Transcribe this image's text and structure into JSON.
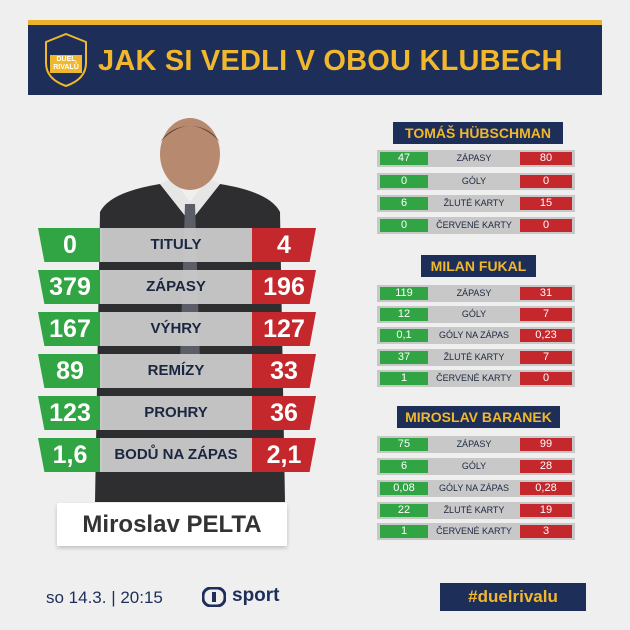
{
  "header": {
    "logo_lines": [
      "DUEL",
      "RIVALŮ"
    ],
    "title": "JAK SI VEDLI V OBOU KLUBECH"
  },
  "person": {
    "name": "Miroslav PELTA"
  },
  "stats": [
    {
      "left": "0",
      "label": "TITULY",
      "right": "4"
    },
    {
      "left": "379",
      "label": "ZÁPASY",
      "right": "196"
    },
    {
      "left": "167",
      "label": "VÝHRY",
      "right": "127"
    },
    {
      "left": "89",
      "label": "REMÍZY",
      "right": "33"
    },
    {
      "left": "123",
      "label": "PROHRY",
      "right": "36"
    },
    {
      "left": "1,6",
      "label": "BODŮ NA ZÁPAS",
      "right": "2,1"
    }
  ],
  "panels": [
    {
      "title": "TOMÁŠ HÜBSCHMAN",
      "rows": [
        {
          "left": "47",
          "label": "ZÁPASY",
          "right": "80"
        },
        {
          "left": "0",
          "label": "GÓLY",
          "right": "0"
        },
        {
          "left": "6",
          "label": "ŽLUTÉ KARTY",
          "right": "15"
        },
        {
          "left": "0",
          "label": "ČERVENÉ KARTY",
          "right": "0"
        }
      ]
    },
    {
      "title": "MILAN FUKAL",
      "rows": [
        {
          "left": "119",
          "label": "ZÁPASY",
          "right": "31"
        },
        {
          "left": "12",
          "label": "GÓLY",
          "right": "7"
        },
        {
          "left": "0,1",
          "label": "GÓLY NA ZÁPAS",
          "right": "0,23"
        },
        {
          "left": "37",
          "label": "ŽLUTÉ KARTY",
          "right": "7"
        },
        {
          "left": "1",
          "label": "ČERVENÉ KARTY",
          "right": "0"
        }
      ]
    },
    {
      "title": "MIROSLAV BARANEK",
      "rows": [
        {
          "left": "75",
          "label": "ZÁPASY",
          "right": "99"
        },
        {
          "left": "6",
          "label": "GÓLY",
          "right": "28"
        },
        {
          "left": "0,08",
          "label": "GÓLY NA ZÁPAS",
          "right": "0,28"
        },
        {
          "left": "22",
          "label": "ŽLUTÉ KARTY",
          "right": "19"
        },
        {
          "left": "1",
          "label": "ČERVENÉ KARTY",
          "right": "3"
        }
      ]
    }
  ],
  "footer": {
    "date_time": "so 14.3. | 20:15",
    "channel": "sport",
    "hashtag": "#duelrivalu"
  },
  "colors": {
    "navy": "#1d2e58",
    "gold": "#f1b82d",
    "green": "#31a544",
    "red": "#c4272c",
    "grey": "#c8c8c8"
  }
}
